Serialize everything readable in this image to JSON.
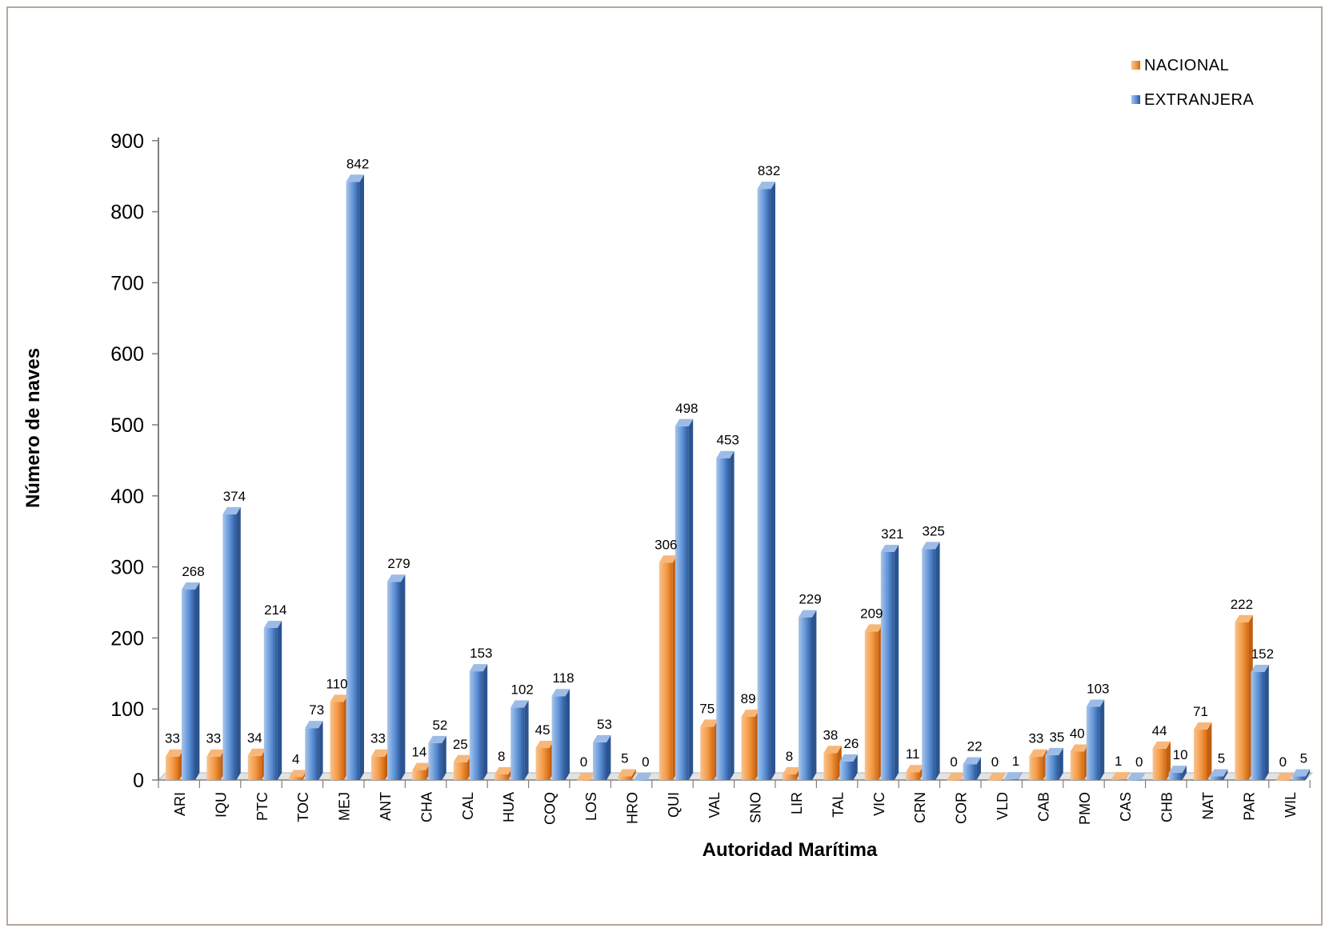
{
  "chart_data": {
    "type": "bar",
    "title": "",
    "xlabel": "Autoridad Marítima",
    "ylabel": "Número de naves",
    "ylim": [
      0,
      900
    ],
    "yticks": [
      0,
      100,
      200,
      300,
      400,
      500,
      600,
      700,
      800,
      900
    ],
    "grid": false,
    "legend_position": "top-right",
    "categories": [
      "ARI",
      "IQU",
      "PTC",
      "TOC",
      "MEJ",
      "ANT",
      "CHA",
      "CAL",
      "HUA",
      "COQ",
      "LOS",
      "HRO",
      "QUI",
      "VAL",
      "SNO",
      "LIR",
      "TAL",
      "VIC",
      "CRN",
      "COR",
      "VLD",
      "CAB",
      "PMO",
      "CAS",
      "CHB",
      "NAT",
      "PAR",
      "WIL"
    ],
    "series": [
      {
        "name": "NACIONAL",
        "color": "#f0913a",
        "values": [
          33,
          33,
          34,
          4,
          110,
          33,
          14,
          25,
          8,
          45,
          0,
          5,
          306,
          75,
          89,
          8,
          38,
          209,
          11,
          0,
          0,
          33,
          40,
          1,
          44,
          71,
          222,
          0
        ]
      },
      {
        "name": "EXTRANJERA",
        "color": "#4a7fc8",
        "values": [
          268,
          374,
          214,
          73,
          842,
          279,
          52,
          153,
          102,
          118,
          53,
          0,
          498,
          453,
          832,
          229,
          26,
          321,
          325,
          22,
          1,
          35,
          103,
          0,
          10,
          5,
          152,
          5
        ]
      }
    ]
  }
}
